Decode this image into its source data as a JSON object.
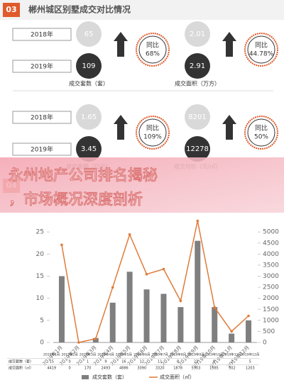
{
  "section3": {
    "badge": "03",
    "title": "郴州城区别墅成交对比情况",
    "blocks": [
      {
        "years": [
          "2018年",
          "2019年"
        ],
        "metrics": [
          {
            "label": "成交套数（套）",
            "values": [
              "65",
              "109"
            ],
            "yoy_label": "同比",
            "yoy": "68%"
          },
          {
            "label": "成交面积（万方）",
            "values": [
              "2.01",
              "2.91"
            ],
            "yoy_label": "同比",
            "yoy": "44.78%"
          }
        ]
      },
      {
        "years": [
          "2018年",
          "2019年"
        ],
        "metrics": [
          {
            "label": "成交金额（亿元）",
            "values": [
              "1.65",
              "3.45"
            ],
            "yoy_label": "同比",
            "yoy": "109%"
          },
          {
            "label": "成交均价（元/㎡）",
            "values": [
              "8201",
              "12278"
            ],
            "yoy_label": "同比",
            "yoy": "50%"
          }
        ]
      }
    ]
  },
  "banner": {
    "lines": [
      "永州地产公司排名揭秘",
      "，市场概况深度剖析"
    ]
  },
  "section4": {
    "badge": "04"
  },
  "chart_data": {
    "type": "bar",
    "categories": [
      "2019年1月",
      "2019年2月",
      "2019年3月",
      "2019年4月",
      "2019年5月",
      "2019年6月",
      "2019年7月",
      "2019年8月",
      "2019年9月",
      "2019年10月",
      "2019年11月",
      "2019年12月"
    ],
    "series": [
      {
        "name": "成交套数（套）",
        "color": "#7f7f7f",
        "values": [
          15,
          0,
          1,
          9,
          16,
          12,
          11,
          8,
          23,
          8,
          2,
          5
        ]
      },
      {
        "name": "成交面积（㎡）",
        "color": "#e07b39",
        "type": "line",
        "axis": "y2",
        "values": [
          4419,
          0,
          170,
          2493,
          4886,
          3090,
          3320,
          1878,
          5503,
          1585,
          502,
          1203
        ]
      }
    ],
    "ylim": [
      0,
      30
    ],
    "yticks": [
      0,
      5,
      10,
      15,
      20,
      25
    ],
    "y2lim": [
      0,
      6000
    ],
    "y2ticks": [
      0,
      500,
      1000,
      1500,
      2000,
      2500,
      3000,
      3500,
      4000,
      4500,
      5000
    ],
    "legend": "bottom"
  }
}
